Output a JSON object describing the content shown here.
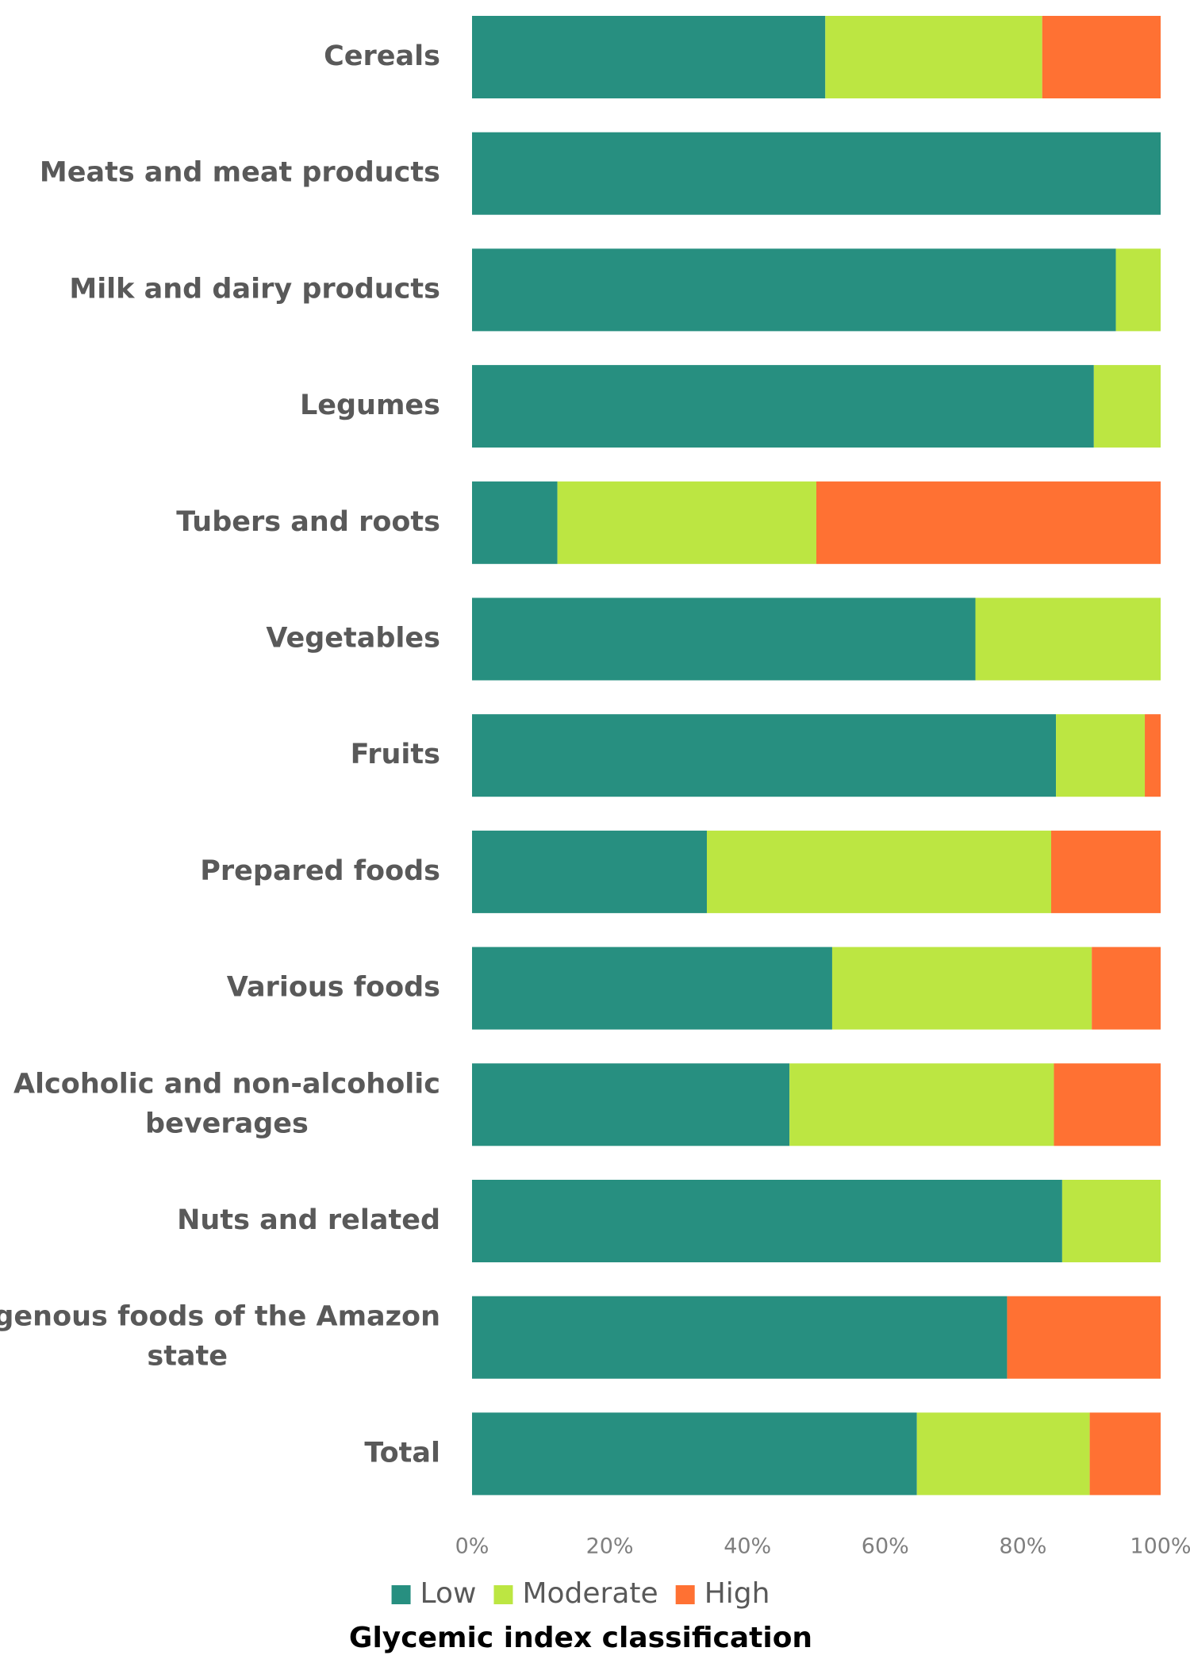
{
  "chart_data": {
    "type": "bar",
    "orientation": "horizontal",
    "stacked": "percent",
    "title": "",
    "xlabel": "Glycemic index classification",
    "ylabel": "",
    "xlim": [
      0,
      100
    ],
    "x_ticks": [
      "0%",
      "20%",
      "40%",
      "60%",
      "80%",
      "100%"
    ],
    "grid": false,
    "legend_position": "bottom",
    "categories": [
      [
        "Cereals"
      ],
      [
        "Meats and meat products"
      ],
      [
        "Milk and dairy products"
      ],
      [
        "Legumes"
      ],
      [
        "Tubers and roots"
      ],
      [
        "Vegetables"
      ],
      [
        "Fruits"
      ],
      [
        "Prepared foods"
      ],
      [
        "Various foods"
      ],
      [
        "Alcoholic and non-alcoholic",
        "beverages"
      ],
      [
        "Nuts and related"
      ],
      [
        "Indigenous foods of the Amazon",
        "state"
      ],
      [
        "Total"
      ]
    ],
    "series": [
      {
        "name": "Low",
        "color": "#278f80",
        "values": [
          51.3,
          100,
          93.5,
          90.3,
          12.4,
          73.1,
          84.8,
          34.1,
          52.3,
          46.1,
          85.7,
          77.7,
          64.6
        ]
      },
      {
        "name": "Moderate",
        "color": "#bce642",
        "values": [
          31.5,
          0,
          6.5,
          9.7,
          37.6,
          26.9,
          12.9,
          50.0,
          37.7,
          38.4,
          14.3,
          0,
          25.1
        ]
      },
      {
        "name": "High",
        "color": "#ff7133",
        "values": [
          17.2,
          0,
          0,
          0,
          50.0,
          0,
          2.3,
          15.9,
          10.0,
          15.5,
          0,
          22.3,
          10.3
        ]
      }
    ]
  }
}
